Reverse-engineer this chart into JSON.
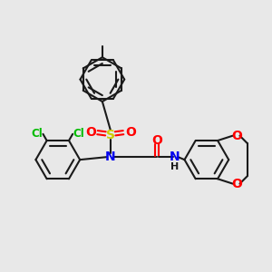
{
  "bg_color": "#e8e8e8",
  "bond_color": "#1a1a1a",
  "atom_colors": {
    "Cl": "#00bb00",
    "N": "#0000ee",
    "S": "#cccc00",
    "O": "#ff0000",
    "C": "#1a1a1a"
  },
  "lw": 1.5,
  "fs": 10,
  "fs_small": 8.5
}
